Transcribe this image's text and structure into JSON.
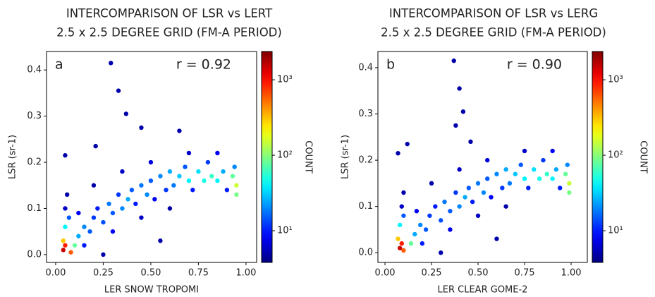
{
  "chart_data": [
    {
      "type": "scatter",
      "title": "INTERCOMPARISON OF LSR vs LERT",
      "subtitle": "2.5 x 2.5 DEGREE GRID (FM-A PERIOD)",
      "panel_label": "a",
      "annotation": "r = 0.92",
      "xlabel": "LER SNOW TROPOMI",
      "ylabel": "LSR (sr-1)",
      "colorbar_label": "COUNT",
      "colormap": "jet",
      "color_scale": "log",
      "xlim": [
        -0.048,
        1.056
      ],
      "ylim": [
        -0.017,
        0.44
      ],
      "clim": [
        3.8,
        2370
      ],
      "xticks": [
        {
          "value": 0,
          "label": "0.00"
        },
        {
          "value": 0.25,
          "label": "0.25"
        },
        {
          "value": 0.5,
          "label": "0.50"
        },
        {
          "value": 0.75,
          "label": "0.75"
        },
        {
          "value": 1,
          "label": "1.00"
        }
      ],
      "yticks": [
        {
          "value": 0,
          "label": "0.0"
        },
        0.1,
        0.2,
        0.3,
        0.4
      ],
      "cticks": [
        {
          "value": 10,
          "label": "10¹"
        },
        {
          "value": 100,
          "label": "10²"
        },
        {
          "value": 1000,
          "label": "10³"
        }
      ],
      "x": [
        0.29,
        0.33,
        0.37,
        0.45,
        0.65,
        0.21,
        0.05,
        0.15,
        0.3,
        0.45,
        0.6,
        0.2,
        0.35,
        0.5,
        0.12,
        0.25,
        0.55,
        0.7,
        0.85,
        0.06,
        0.05,
        0.07,
        0.1,
        0.12,
        0.15,
        0.18,
        0.2,
        0.22,
        0.25,
        0.28,
        0.3,
        0.33,
        0.35,
        0.38,
        0.4,
        0.42,
        0.45,
        0.48,
        0.5,
        0.52,
        0.55,
        0.58,
        0.6,
        0.62,
        0.65,
        0.68,
        0.7,
        0.72,
        0.75,
        0.78,
        0.8,
        0.82,
        0.85,
        0.88,
        0.9,
        0.94,
        0.93,
        0.95,
        0.95,
        0.05,
        0.04,
        0.08,
        0.04,
        0.05
      ],
      "y": [
        0.415,
        0.355,
        0.305,
        0.275,
        0.268,
        0.235,
        0.215,
        0.02,
        0.05,
        0.08,
        0.1,
        0.15,
        0.18,
        0.2,
        0.09,
        0.0,
        0.03,
        0.22,
        0.22,
        0.13,
        0.1,
        0.08,
        0.02,
        0.04,
        0.06,
        0.05,
        0.08,
        0.1,
        0.07,
        0.11,
        0.09,
        0.13,
        0.1,
        0.12,
        0.14,
        0.11,
        0.15,
        0.13,
        0.16,
        0.12,
        0.17,
        0.14,
        0.18,
        0.15,
        0.17,
        0.19,
        0.16,
        0.14,
        0.18,
        0.16,
        0.2,
        0.17,
        0.16,
        0.18,
        0.14,
        0.19,
        0.17,
        0.15,
        0.13,
        0.06,
        0.03,
        0.005,
        0.01,
        0.02
      ],
      "counts": [
        5,
        5,
        5,
        5,
        5,
        5,
        5,
        10,
        8,
        6,
        5,
        5,
        6,
        7,
        8,
        5,
        5,
        6,
        8,
        5,
        6,
        15,
        80,
        25,
        20,
        15,
        12,
        10,
        14,
        18,
        15,
        12,
        20,
        25,
        15,
        10,
        18,
        20,
        15,
        8,
        20,
        12,
        25,
        18,
        30,
        15,
        40,
        10,
        35,
        50,
        12,
        60,
        40,
        25,
        10,
        20,
        80,
        150,
        90,
        40,
        300,
        600,
        1500,
        900
      ]
    },
    {
      "type": "scatter",
      "title": "INTERCOMPARISON OF LSR vs LERG",
      "subtitle": "2.5 x 2.5 DEGREE GRID (FM-A PERIOD)",
      "panel_label": "b",
      "annotation": "r = 0.90",
      "xlabel": "LER CLEAR GOME-2",
      "ylabel": "LSR (sr-1)",
      "colorbar_label": "COUNT",
      "colormap": "jet",
      "color_scale": "log",
      "xlim": [
        -0.038,
        1.087
      ],
      "ylim": [
        -0.021,
        0.435
      ],
      "clim": [
        3.8,
        2370
      ],
      "xticks": [
        {
          "value": 0,
          "label": "0.00"
        },
        {
          "value": 0.25,
          "label": "0.25"
        },
        {
          "value": 0.5,
          "label": "0.50"
        },
        {
          "value": 0.75,
          "label": "0.75"
        },
        {
          "value": 1,
          "label": "1.00"
        }
      ],
      "yticks": [
        {
          "value": 0,
          "label": "0.0"
        },
        0.1,
        0.2,
        0.3,
        0.4
      ],
      "cticks": [
        {
          "value": 10,
          "label": "10¹"
        },
        {
          "value": 100,
          "label": "10²"
        },
        {
          "value": 1000,
          "label": "10³"
        }
      ],
      "x": [
        0.37,
        0.4,
        0.42,
        0.38,
        0.46,
        0.12,
        0.07,
        0.2,
        0.35,
        0.5,
        0.65,
        0.25,
        0.4,
        0.55,
        0.17,
        0.3,
        0.6,
        0.75,
        0.9,
        0.1,
        0.09,
        0.1,
        0.14,
        0.16,
        0.19,
        0.22,
        0.24,
        0.27,
        0.3,
        0.32,
        0.35,
        0.38,
        0.4,
        0.43,
        0.45,
        0.47,
        0.5,
        0.53,
        0.55,
        0.57,
        0.6,
        0.63,
        0.65,
        0.67,
        0.7,
        0.73,
        0.75,
        0.77,
        0.8,
        0.83,
        0.85,
        0.87,
        0.9,
        0.92,
        0.94,
        0.98,
        0.97,
        0.99,
        0.99,
        0.08,
        0.07,
        0.1,
        0.08,
        0.09
      ],
      "y": [
        0.415,
        0.355,
        0.305,
        0.275,
        0.24,
        0.235,
        0.215,
        0.02,
        0.05,
        0.08,
        0.1,
        0.15,
        0.18,
        0.2,
        0.09,
        0.0,
        0.03,
        0.22,
        0.22,
        0.13,
        0.1,
        0.08,
        0.02,
        0.04,
        0.06,
        0.05,
        0.08,
        0.1,
        0.07,
        0.11,
        0.09,
        0.13,
        0.1,
        0.12,
        0.14,
        0.11,
        0.15,
        0.13,
        0.16,
        0.12,
        0.17,
        0.14,
        0.18,
        0.15,
        0.17,
        0.19,
        0.16,
        0.14,
        0.18,
        0.16,
        0.2,
        0.17,
        0.16,
        0.18,
        0.14,
        0.19,
        0.17,
        0.15,
        0.13,
        0.06,
        0.03,
        0.005,
        0.01,
        0.02
      ],
      "counts": [
        5,
        5,
        5,
        5,
        5,
        5,
        5,
        10,
        8,
        6,
        5,
        5,
        6,
        7,
        8,
        5,
        5,
        6,
        8,
        5,
        6,
        15,
        80,
        25,
        20,
        15,
        12,
        10,
        14,
        18,
        15,
        12,
        20,
        25,
        15,
        10,
        18,
        20,
        15,
        8,
        20,
        12,
        25,
        18,
        30,
        15,
        40,
        10,
        35,
        50,
        12,
        60,
        40,
        25,
        10,
        20,
        80,
        150,
        90,
        40,
        300,
        600,
        1500,
        900
      ]
    }
  ]
}
